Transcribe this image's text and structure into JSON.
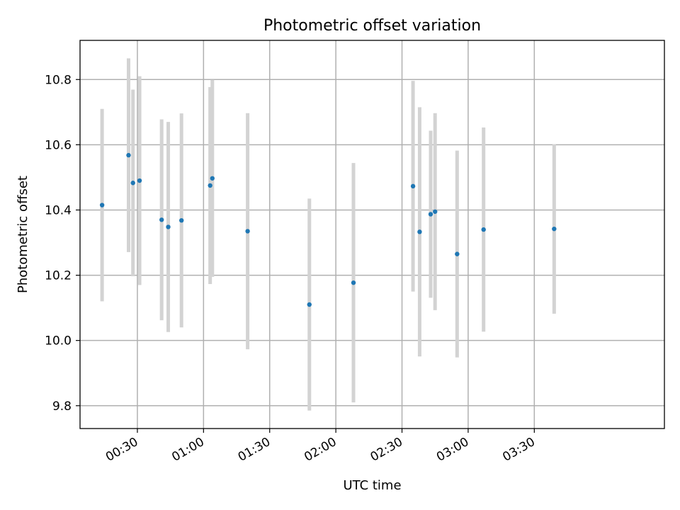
{
  "chart_data": {
    "type": "scatter",
    "title": "Photometric offset variation",
    "xlabel": "UTC time",
    "ylabel": "Photometric offset",
    "x_type": "time",
    "xlim": [
      "00:04",
      "04:29"
    ],
    "ylim": [
      9.73,
      10.92
    ],
    "x_ticks": [
      "00:30",
      "01:00",
      "01:30",
      "02:00",
      "02:30",
      "03:00",
      "03:30"
    ],
    "y_ticks": [
      9.8,
      10.0,
      10.2,
      10.4,
      10.6,
      10.8
    ],
    "y_tick_labels": [
      "9.8",
      "10.0",
      "10.2",
      "10.4",
      "10.6",
      "10.8"
    ],
    "grid": true,
    "marker_color": "#1f77b4",
    "errorbar_color": "#d3d3d3",
    "series": [
      {
        "points": [
          {
            "x": "00:14",
            "y": 10.415,
            "err": 0.295
          },
          {
            "x": "00:26",
            "y": 10.568,
            "err": 0.297
          },
          {
            "x": "00:28",
            "y": 10.483,
            "err": 0.286
          },
          {
            "x": "00:31",
            "y": 10.49,
            "err": 0.32
          },
          {
            "x": "00:41",
            "y": 10.37,
            "err": 0.308
          },
          {
            "x": "00:44",
            "y": 10.348,
            "err": 0.322
          },
          {
            "x": "00:50",
            "y": 10.368,
            "err": 0.328
          },
          {
            "x": "01:03",
            "y": 10.475,
            "err": 0.302
          },
          {
            "x": "01:04",
            "y": 10.497,
            "err": 0.302
          },
          {
            "x": "01:20",
            "y": 10.335,
            "err": 0.362
          },
          {
            "x": "01:48",
            "y": 10.11,
            "err": 0.325
          },
          {
            "x": "02:08",
            "y": 10.177,
            "err": 0.367
          },
          {
            "x": "02:35",
            "y": 10.473,
            "err": 0.323
          },
          {
            "x": "02:38",
            "y": 10.333,
            "err": 0.382
          },
          {
            "x": "02:43",
            "y": 10.387,
            "err": 0.256
          },
          {
            "x": "02:45",
            "y": 10.395,
            "err": 0.302
          },
          {
            "x": "02:55",
            "y": 10.265,
            "err": 0.317
          },
          {
            "x": "03:07",
            "y": 10.34,
            "err": 0.313
          },
          {
            "x": "03:39",
            "y": 10.342,
            "err": 0.26
          }
        ]
      }
    ]
  }
}
